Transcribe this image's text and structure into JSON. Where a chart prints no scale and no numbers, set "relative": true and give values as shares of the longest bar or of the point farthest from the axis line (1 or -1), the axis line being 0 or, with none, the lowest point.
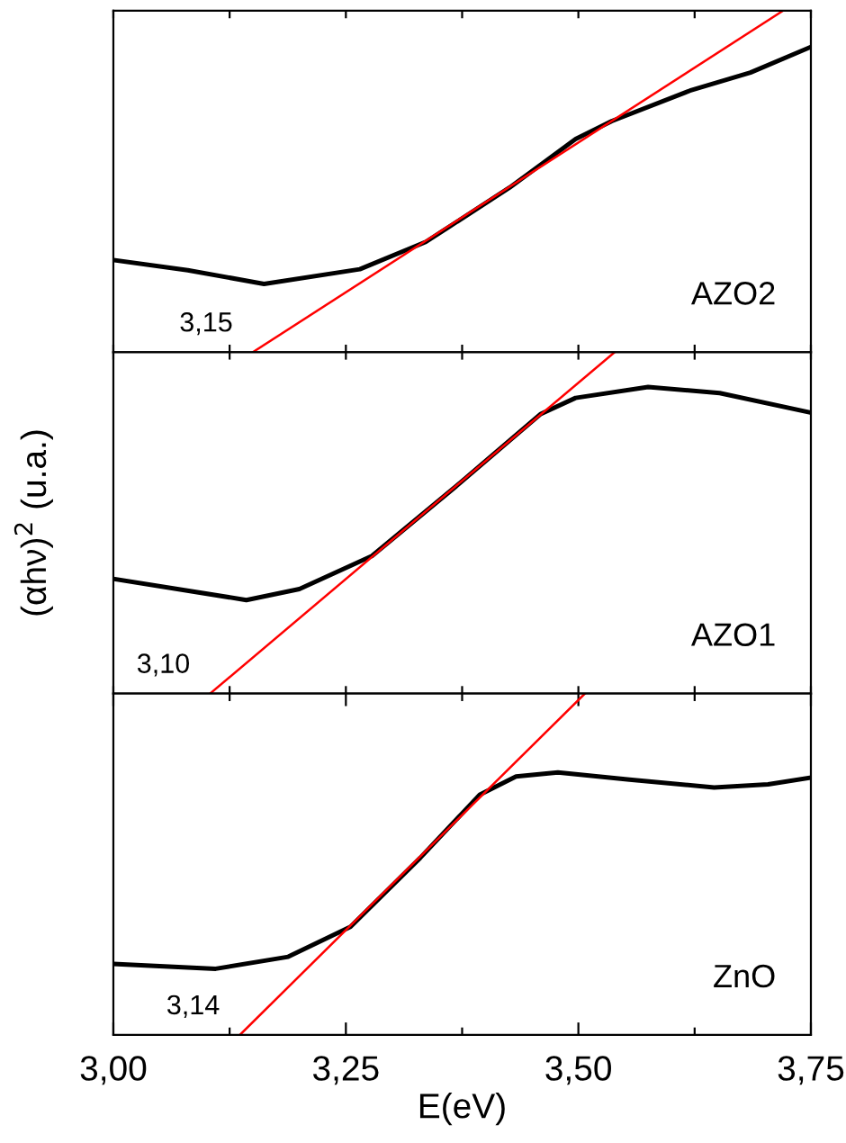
{
  "chart_data": [
    {
      "type": "line",
      "relative": true,
      "xlim": [
        3.0,
        3.75
      ],
      "tick_labels": false,
      "xticks": [
        {
          "value": 3.0,
          "label": null
        },
        {
          "value": 3.125,
          "label": null
        },
        {
          "value": 3.25,
          "label": null
        },
        {
          "value": 3.375,
          "label": null
        },
        {
          "value": 3.5,
          "label": null
        },
        {
          "value": 3.625,
          "label": null
        },
        {
          "value": 3.75,
          "label": null
        }
      ],
      "series": [
        {
          "color": "#000000",
          "x": [
            3.0,
            3.08,
            3.162,
            3.265,
            3.336,
            3.426,
            3.497,
            3.536,
            3.62,
            3.685,
            3.75
          ],
          "values": [
            0.27,
            0.24,
            0.2,
            0.243,
            0.323,
            0.482,
            0.624,
            0.677,
            0.766,
            0.819,
            0.894
          ]
        },
        {
          "color": "#ff0000",
          "x": [
            3.15,
            3.72
          ],
          "values": [
            0,
            1
          ]
        }
      ],
      "annotations": [
        {
          "text": "3,15",
          "x": 3.15,
          "y": 0
        },
        "AZO2"
      ]
    },
    {
      "type": "line",
      "relative": true,
      "xlim": [
        3.0,
        3.75
      ],
      "tick_labels": false,
      "ylabel": "(αhν)$^{2}$ (u.a.)",
      "xticks": [
        {
          "value": 3.0,
          "label": null
        },
        {
          "value": 3.125,
          "label": null
        },
        {
          "value": 3.25,
          "label": null
        },
        {
          "value": 3.375,
          "label": null
        },
        {
          "value": 3.5,
          "label": null
        },
        {
          "value": 3.625,
          "label": null
        },
        {
          "value": 3.75,
          "label": null
        }
      ],
      "series": [
        {
          "color": "#000000",
          "x": [
            3.0,
            3.143,
            3.2,
            3.278,
            3.368,
            3.459,
            3.497,
            3.575,
            3.652,
            3.75
          ],
          "values": [
            0.336,
            0.274,
            0.306,
            0.403,
            0.606,
            0.818,
            0.866,
            0.898,
            0.88,
            0.823
          ]
        },
        {
          "color": "#ff0000",
          "x": [
            3.104,
            3.539
          ],
          "values": [
            0,
            1
          ]
        }
      ],
      "annotations": [
        {
          "text": "3,10",
          "x": 3.104,
          "y": 0
        },
        "AZO1"
      ]
    },
    {
      "type": "line",
      "relative": true,
      "xlim": [
        3.0,
        3.75
      ],
      "tick_labels": "x",
      "xlabel": "E(eV)",
      "xticks": [
        {
          "value": 3.0,
          "label": "3,00"
        },
        {
          "value": 3.125,
          "label": null
        },
        {
          "value": 3.25,
          "label": "3,25"
        },
        {
          "value": 3.375,
          "label": null
        },
        {
          "value": 3.5,
          "label": "3,50"
        },
        {
          "value": 3.625,
          "label": null
        },
        {
          "value": 3.75,
          "label": "3,75"
        }
      ],
      "series": [
        {
          "color": "#000000",
          "x": [
            3.0,
            3.11,
            3.188,
            3.255,
            3.33,
            3.394,
            3.433,
            3.478,
            3.555,
            3.646,
            3.704,
            3.75
          ],
          "values": [
            0.208,
            0.194,
            0.229,
            0.317,
            0.519,
            0.704,
            0.757,
            0.769,
            0.748,
            0.725,
            0.734,
            0.754
          ]
        },
        {
          "color": "#ff0000",
          "x": [
            3.136,
            3.507
          ],
          "values": [
            0,
            1
          ]
        }
      ],
      "annotations": [
        {
          "text": "3,14",
          "x": 3.136,
          "y": 0
        },
        "ZnO"
      ]
    }
  ]
}
